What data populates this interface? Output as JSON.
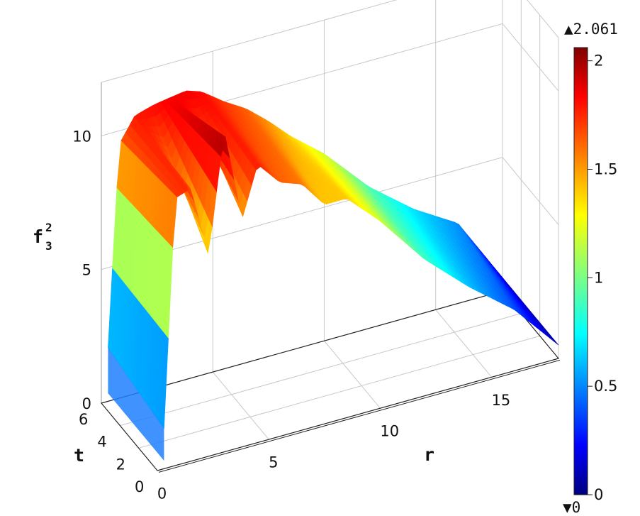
{
  "chart_data": {
    "type": "surface",
    "title": "",
    "xlabel": "r",
    "ylabel": "t",
    "zlabel": "f",
    "zlabel_sub": "3",
    "zlabel_sup": "2",
    "xlim": [
      0,
      18
    ],
    "ylim": [
      0,
      6
    ],
    "zlim": [
      0,
      12
    ],
    "x_ticks": [
      "0",
      "5",
      "10",
      "15"
    ],
    "y_ticks": [
      "0",
      "2",
      "4",
      "6"
    ],
    "z_ticks": [
      "0",
      "5",
      "10"
    ],
    "colorbar": {
      "colormap": "jet",
      "min_label": "▼0",
      "max_label": "▲2.061",
      "min": 0,
      "max": 2.061,
      "ticks": [
        "0",
        "0.5",
        "1",
        "1.5",
        "2"
      ]
    },
    "surface_profile": {
      "r": [
        0.3,
        0.8,
        1.5,
        2.3,
        3.0,
        3.8,
        4.5,
        5.5,
        6.5,
        7.5,
        8.5,
        10,
        12,
        14,
        16,
        18
      ],
      "front_t0": [
        1.5,
        10.0,
        10.2,
        7.5,
        12.0,
        8.5,
        10.4,
        9.5,
        9.2,
        8.2,
        8.2,
        7.0,
        5.1,
        3.6,
        2.3,
        0.5
      ],
      "back_t6": [
        2.0,
        9.5,
        10.4,
        10.6,
        10.7,
        10.8,
        10.6,
        10.0,
        9.5,
        8.8,
        8.0,
        7.0,
        5.3,
        4.0,
        3.0,
        0.5
      ]
    },
    "grid": true,
    "legend": "colorbar-right"
  }
}
